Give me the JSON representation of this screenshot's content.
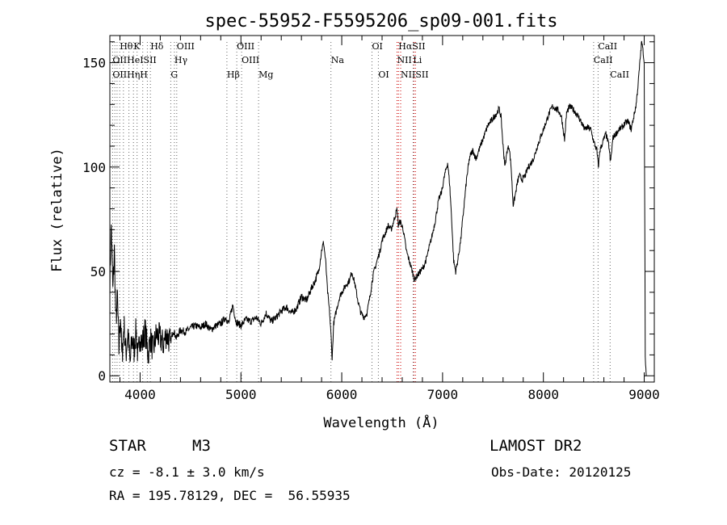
{
  "chart_data": {
    "type": "line",
    "title": "spec-55952-F5595206_sp09-001.fits",
    "xlabel": "Wavelength (Å)",
    "ylabel": "Flux (relative)",
    "xlim": [
      3700,
      9100
    ],
    "ylim": [
      -3,
      163
    ],
    "x_ticks": [
      4000,
      5000,
      6000,
      7000,
      8000,
      9000
    ],
    "y_ticks": [
      0,
      50,
      100,
      150
    ],
    "grid": false,
    "series": [
      {
        "points": [
          [
            3700,
            45
          ],
          [
            3715,
            72
          ],
          [
            3730,
            40
          ],
          [
            3745,
            60
          ],
          [
            3760,
            25
          ],
          [
            3775,
            38
          ],
          [
            3790,
            12
          ],
          [
            3805,
            30
          ],
          [
            3820,
            8
          ],
          [
            3840,
            25
          ],
          [
            3860,
            10
          ],
          [
            3880,
            22
          ],
          [
            3900,
            5
          ],
          [
            3920,
            18
          ],
          [
            3940,
            12
          ],
          [
            3960,
            22
          ],
          [
            3980,
            8
          ],
          [
            4000,
            20
          ],
          [
            4020,
            15
          ],
          [
            4050,
            22
          ],
          [
            4080,
            10
          ],
          [
            4100,
            18
          ],
          [
            4130,
            12
          ],
          [
            4160,
            20
          ],
          [
            4200,
            18
          ],
          [
            4230,
            15
          ],
          [
            4260,
            20
          ],
          [
            4300,
            16
          ],
          [
            4330,
            22
          ],
          [
            4360,
            18
          ],
          [
            4400,
            22
          ],
          [
            4450,
            21
          ],
          [
            4500,
            23
          ],
          [
            4550,
            24
          ],
          [
            4600,
            23
          ],
          [
            4650,
            25
          ],
          [
            4700,
            22
          ],
          [
            4750,
            24
          ],
          [
            4800,
            25
          ],
          [
            4850,
            28
          ],
          [
            4880,
            25
          ],
          [
            4900,
            30
          ],
          [
            4920,
            34
          ],
          [
            4950,
            26
          ],
          [
            5000,
            24
          ],
          [
            5050,
            27
          ],
          [
            5100,
            26
          ],
          [
            5150,
            28
          ],
          [
            5200,
            25
          ],
          [
            5250,
            30
          ],
          [
            5300,
            26
          ],
          [
            5350,
            28
          ],
          [
            5400,
            31
          ],
          [
            5450,
            33
          ],
          [
            5500,
            30
          ],
          [
            5550,
            32
          ],
          [
            5600,
            38
          ],
          [
            5650,
            36
          ],
          [
            5700,
            42
          ],
          [
            5740,
            46
          ],
          [
            5770,
            50
          ],
          [
            5800,
            60
          ],
          [
            5820,
            64
          ],
          [
            5840,
            55
          ],
          [
            5860,
            40
          ],
          [
            5880,
            30
          ],
          [
            5895,
            18
          ],
          [
            5905,
            8
          ],
          [
            5920,
            25
          ],
          [
            5950,
            32
          ],
          [
            5980,
            38
          ],
          [
            6000,
            40
          ],
          [
            6050,
            44
          ],
          [
            6080,
            46
          ],
          [
            6100,
            50
          ],
          [
            6130,
            44
          ],
          [
            6160,
            36
          ],
          [
            6190,
            30
          ],
          [
            6220,
            28
          ],
          [
            6250,
            30
          ],
          [
            6280,
            38
          ],
          [
            6300,
            45
          ],
          [
            6320,
            50
          ],
          [
            6350,
            55
          ],
          [
            6380,
            60
          ],
          [
            6400,
            65
          ],
          [
            6430,
            68
          ],
          [
            6460,
            72
          ],
          [
            6490,
            70
          ],
          [
            6520,
            75
          ],
          [
            6550,
            80
          ],
          [
            6560,
            72
          ],
          [
            6580,
            74
          ],
          [
            6610,
            70
          ],
          [
            6640,
            60
          ],
          [
            6670,
            55
          ],
          [
            6700,
            50
          ],
          [
            6720,
            46
          ],
          [
            6750,
            48
          ],
          [
            6780,
            50
          ],
          [
            6810,
            52
          ],
          [
            6840,
            56
          ],
          [
            6870,
            62
          ],
          [
            6900,
            68
          ],
          [
            6930,
            75
          ],
          [
            6960,
            84
          ],
          [
            6990,
            88
          ],
          [
            7020,
            96
          ],
          [
            7050,
            102
          ],
          [
            7070,
            92
          ],
          [
            7090,
            75
          ],
          [
            7110,
            55
          ],
          [
            7130,
            50
          ],
          [
            7150,
            55
          ],
          [
            7180,
            65
          ],
          [
            7210,
            80
          ],
          [
            7240,
            95
          ],
          [
            7270,
            105
          ],
          [
            7300,
            108
          ],
          [
            7330,
            104
          ],
          [
            7360,
            108
          ],
          [
            7390,
            112
          ],
          [
            7420,
            116
          ],
          [
            7450,
            120
          ],
          [
            7480,
            122
          ],
          [
            7510,
            124
          ],
          [
            7540,
            126
          ],
          [
            7560,
            128
          ],
          [
            7580,
            124
          ],
          [
            7600,
            110
          ],
          [
            7620,
            100
          ],
          [
            7640,
            108
          ],
          [
            7660,
            110
          ],
          [
            7680,
            100
          ],
          [
            7700,
            82
          ],
          [
            7715,
            85
          ],
          [
            7740,
            92
          ],
          [
            7760,
            96
          ],
          [
            7790,
            94
          ],
          [
            7820,
            96
          ],
          [
            7850,
            100
          ],
          [
            7880,
            102
          ],
          [
            7910,
            105
          ],
          [
            7940,
            110
          ],
          [
            7970,
            114
          ],
          [
            8000,
            118
          ],
          [
            8030,
            122
          ],
          [
            8060,
            126
          ],
          [
            8090,
            129
          ],
          [
            8120,
            128
          ],
          [
            8150,
            127
          ],
          [
            8180,
            124
          ],
          [
            8210,
            113
          ],
          [
            8230,
            126
          ],
          [
            8260,
            129
          ],
          [
            8290,
            128
          ],
          [
            8320,
            126
          ],
          [
            8350,
            124
          ],
          [
            8380,
            121
          ],
          [
            8410,
            118
          ],
          [
            8440,
            119
          ],
          [
            8470,
            118
          ],
          [
            8500,
            112
          ],
          [
            8530,
            108
          ],
          [
            8545,
            100
          ],
          [
            8560,
            108
          ],
          [
            8590,
            112
          ],
          [
            8620,
            116
          ],
          [
            8650,
            110
          ],
          [
            8665,
            102
          ],
          [
            8690,
            114
          ],
          [
            8720,
            116
          ],
          [
            8750,
            118
          ],
          [
            8780,
            119
          ],
          [
            8810,
            121
          ],
          [
            8840,
            122
          ],
          [
            8870,
            118
          ],
          [
            8900,
            125
          ],
          [
            8920,
            130
          ],
          [
            8940,
            140
          ],
          [
            8960,
            152
          ],
          [
            8975,
            160
          ],
          [
            8990,
            155
          ],
          [
            9000,
            150
          ],
          [
            9010,
            10
          ],
          [
            9020,
            0
          ]
        ]
      }
    ],
    "line_labels": [
      {
        "text": "Hθ",
        "x": 3798,
        "row": 1
      },
      {
        "text": "K",
        "x": 3934,
        "row": 1
      },
      {
        "text": "Hδ",
        "x": 4102,
        "row": 1
      },
      {
        "text": "OIII",
        "x": 4363,
        "row": 1
      },
      {
        "text": "OIII",
        "x": 4959,
        "row": 1
      },
      {
        "text": "OI",
        "x": 6300,
        "row": 1
      },
      {
        "text": "HαSII",
        "x": 6563,
        "row": 1
      },
      {
        "text": "CaII",
        "x": 8542,
        "row": 1
      },
      {
        "text": "OIIHeISII",
        "x": 3727,
        "row": 2
      },
      {
        "text": "Hγ",
        "x": 4340,
        "row": 2
      },
      {
        "text": "OIII",
        "x": 5007,
        "row": 2
      },
      {
        "text": "Na",
        "x": 5893,
        "row": 2
      },
      {
        "text": "NII",
        "x": 6548,
        "row": 2
      },
      {
        "text": "Li",
        "x": 6708,
        "row": 2
      },
      {
        "text": "CaII",
        "x": 8498,
        "row": 2
      },
      {
        "text": "OIIHηH",
        "x": 3727,
        "row": 3
      },
      {
        "text": "G",
        "x": 4304,
        "row": 3
      },
      {
        "text": "Hβ",
        "x": 4861,
        "row": 3
      },
      {
        "text": "Mg",
        "x": 5175,
        "row": 3
      },
      {
        "text": "OI",
        "x": 6363,
        "row": 3
      },
      {
        "text": "NIISII",
        "x": 6584,
        "row": 3
      },
      {
        "text": "CaII",
        "x": 8662,
        "row": 3
      }
    ],
    "line_markers": [
      3727,
      3750,
      3771,
      3798,
      3835,
      3889,
      3934,
      3970,
      4026,
      4072,
      4102,
      4304,
      4340,
      4363,
      4861,
      4959,
      5007,
      5175,
      5893,
      6300,
      6363,
      6548,
      6563,
      6584,
      6708,
      6716,
      6731,
      8498,
      8542,
      8662
    ],
    "emission_markers": [
      6548,
      6563,
      6584,
      6716,
      6731
    ],
    "colors": {
      "line": "#000000",
      "marker": "#666666",
      "emission_marker": "#cc0000"
    }
  },
  "info": {
    "class": "STAR",
    "subclass": "M3",
    "survey": "LAMOST DR2",
    "cz": "cz = -8.1 ± 3.0 km/s",
    "obsdate": "Obs-Date: 20120125",
    "radec": "RA = 195.78129, DEC =  56.55935"
  }
}
